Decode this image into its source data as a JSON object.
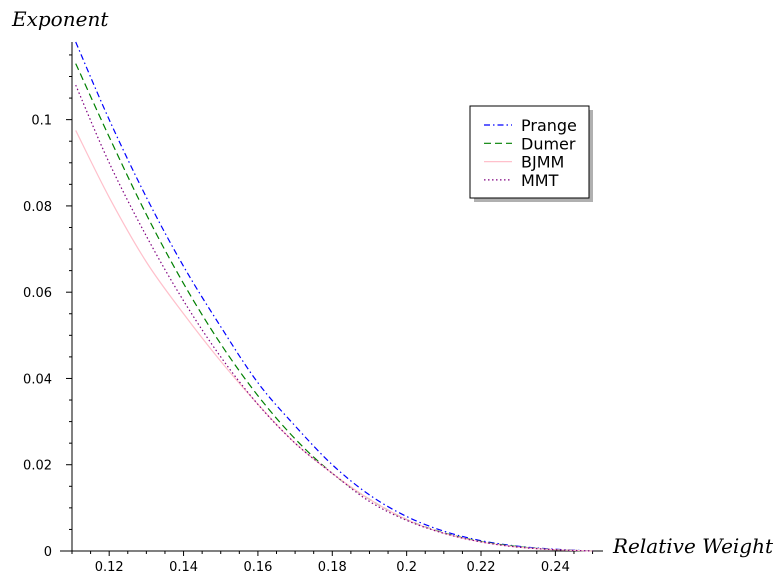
{
  "chart_data": {
    "type": "line",
    "title": "",
    "xlabel": "Relative Weight",
    "ylabel": "Exponent",
    "xlim": [
      0.11,
      0.252
    ],
    "ylim": [
      0,
      0.118
    ],
    "x_ticks": [
      0.12,
      0.14,
      0.16,
      0.18,
      0.2,
      0.22,
      0.24
    ],
    "x_tick_labels": [
      "0.12",
      "0.14",
      "0.16",
      "0.18",
      "0.2",
      "0.22",
      "0.24"
    ],
    "y_ticks": [
      0,
      0.02,
      0.04,
      0.06,
      0.08,
      0.1
    ],
    "y_tick_labels": [
      "0",
      "0.02",
      "0.04",
      "0.06",
      "0.08",
      "0.1"
    ],
    "grid": false,
    "legend_position": "top-right",
    "series": [
      {
        "name": "Prange",
        "color": "#0000ff",
        "style": "dash-dot",
        "x": [
          0.111,
          0.12,
          0.13,
          0.14,
          0.15,
          0.16,
          0.17,
          0.18,
          0.19,
          0.2,
          0.21,
          0.22,
          0.23,
          0.24,
          0.25
        ],
        "y": [
          0.118,
          0.1,
          0.082,
          0.066,
          0.052,
          0.039,
          0.029,
          0.02,
          0.013,
          0.008,
          0.0046,
          0.0024,
          0.0011,
          0.0004,
          0.0
        ]
      },
      {
        "name": "Dumer",
        "color": "#008000",
        "style": "dashed",
        "x": [
          0.111,
          0.12,
          0.13,
          0.14,
          0.15,
          0.16,
          0.17,
          0.18,
          0.19,
          0.2,
          0.21,
          0.22,
          0.23,
          0.24,
          0.25
        ],
        "y": [
          0.113,
          0.096,
          0.078,
          0.062,
          0.048,
          0.036,
          0.026,
          0.018,
          0.012,
          0.0073,
          0.0042,
          0.0022,
          0.001,
          0.0003,
          0.0
        ]
      },
      {
        "name": "BJMM",
        "color": "#ffc0cb",
        "style": "solid",
        "x": [
          0.111,
          0.12,
          0.13,
          0.14,
          0.15,
          0.16,
          0.17,
          0.18,
          0.19,
          0.2,
          0.21,
          0.22,
          0.23,
          0.24,
          0.25
        ],
        "y": [
          0.0975,
          0.082,
          0.067,
          0.055,
          0.044,
          0.034,
          0.025,
          0.018,
          0.012,
          0.0073,
          0.0041,
          0.0021,
          0.0009,
          0.0003,
          0.0
        ]
      },
      {
        "name": "MMT",
        "color": "#800080",
        "style": "dotted",
        "x": [
          0.111,
          0.12,
          0.13,
          0.14,
          0.15,
          0.16,
          0.17,
          0.18,
          0.19,
          0.2,
          0.21,
          0.22,
          0.23,
          0.24,
          0.25
        ],
        "y": [
          0.108,
          0.09,
          0.073,
          0.058,
          0.045,
          0.034,
          0.025,
          0.018,
          0.0115,
          0.0071,
          0.0041,
          0.0021,
          0.0009,
          0.0003,
          0.0
        ]
      }
    ]
  }
}
